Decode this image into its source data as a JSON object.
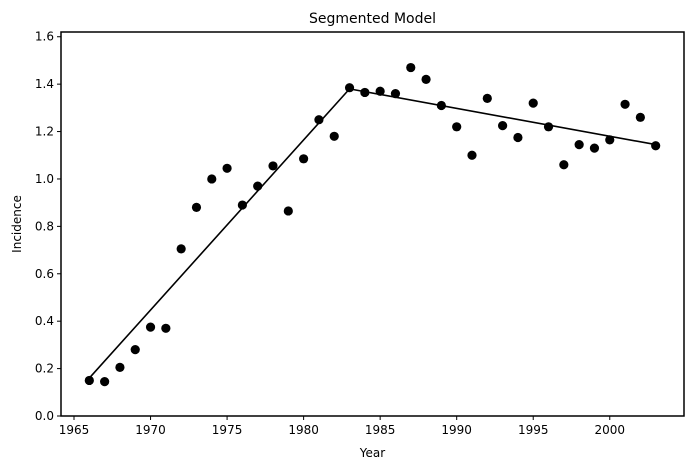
{
  "chart_data": {
    "type": "scatter",
    "title": "Segmented Model",
    "xlabel": "Year",
    "ylabel": "Incidence",
    "xlim": [
      1964.15,
      2004.85
    ],
    "ylim": [
      0.0,
      1.62
    ],
    "xticks": [
      1965,
      1970,
      1975,
      1980,
      1985,
      1990,
      1995,
      2000
    ],
    "yticks": [
      0.0,
      0.2,
      0.4,
      0.6,
      0.8,
      1.0,
      1.2,
      1.4,
      1.6
    ],
    "xtick_labels": [
      "1965",
      "1970",
      "1975",
      "1980",
      "1985",
      "1990",
      "1995",
      "2000"
    ],
    "ytick_labels": [
      "0.0",
      "0.2",
      "0.4",
      "0.6",
      "0.8",
      "1.0",
      "1.2",
      "1.4",
      "1.6"
    ],
    "grid": false,
    "colors": {
      "points": "#000000",
      "fit_line": "#000000",
      "axes": "#000000"
    },
    "points": {
      "x": [
        1966,
        1967,
        1968,
        1969,
        1970,
        1971,
        1972,
        1973,
        1974,
        1975,
        1976,
        1977,
        1978,
        1979,
        1980,
        1981,
        1982,
        1983,
        1984,
        1985,
        1986,
        1987,
        1988,
        1989,
        1990,
        1991,
        1992,
        1993,
        1994,
        1995,
        1996,
        1997,
        1998,
        1999,
        2000,
        2001,
        2002,
        2003
      ],
      "y": [
        0.15,
        0.145,
        0.205,
        0.28,
        0.375,
        0.37,
        0.705,
        0.88,
        1.0,
        1.045,
        0.89,
        0.97,
        1.055,
        0.865,
        1.085,
        1.25,
        1.18,
        1.385,
        1.365,
        1.37,
        1.36,
        1.47,
        1.42,
        1.31,
        1.22,
        1.1,
        1.34,
        1.225,
        1.175,
        1.32,
        1.22,
        1.06,
        1.145,
        1.13,
        1.165,
        1.315,
        1.26,
        1.14
      ]
    },
    "fit_line": {
      "x": [
        1966,
        1983,
        2003
      ],
      "y": [
        0.16,
        1.38,
        1.145
      ]
    }
  }
}
